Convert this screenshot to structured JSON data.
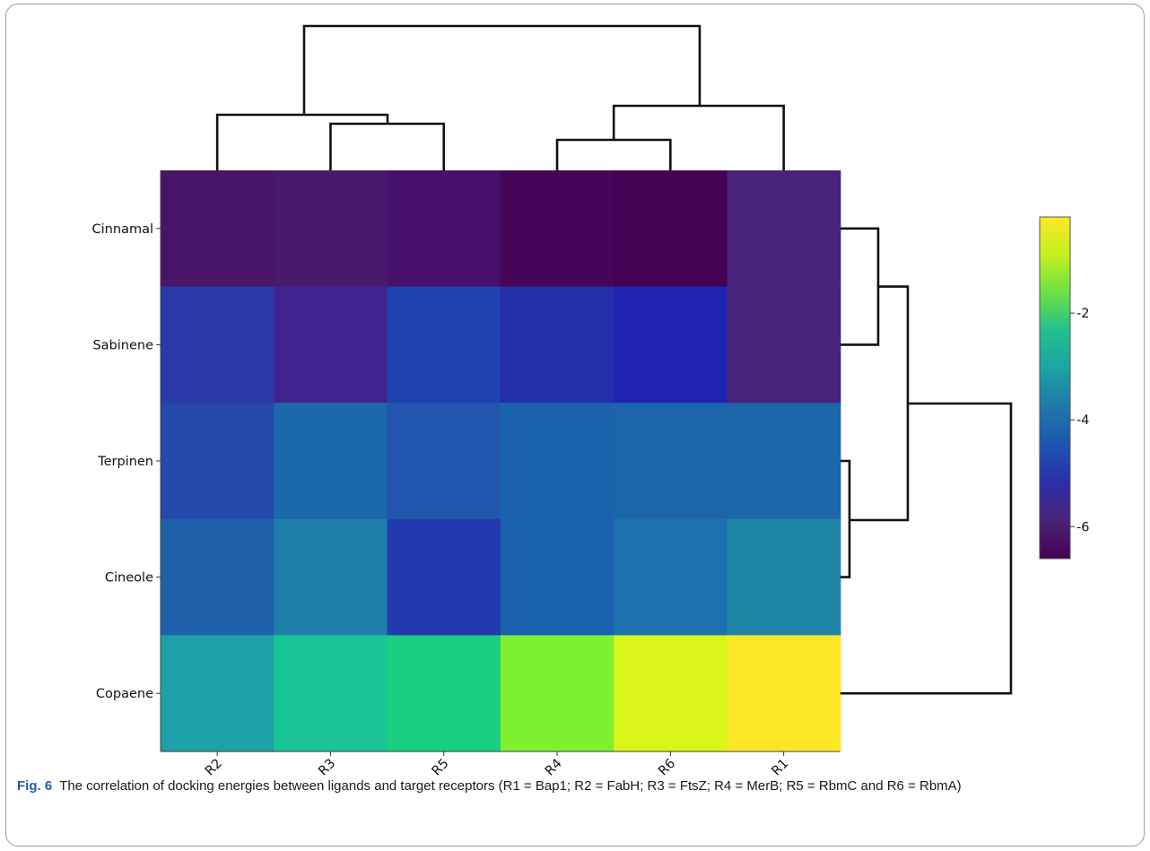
{
  "chart_data": {
    "type": "heatmap",
    "title": "",
    "xlabel": "",
    "ylabel": "",
    "columns": [
      "R2",
      "R3",
      "R5",
      "R4",
      "R6",
      "R1"
    ],
    "rows": [
      "Cinnamal",
      "Sabinene",
      "Terpinen",
      "Cineole",
      "Copaene"
    ],
    "values": [
      [
        -6.2,
        -6.1,
        -6.3,
        -6.4,
        -6.6,
        -5.9
      ],
      [
        -5.1,
        -5.7,
        -4.8,
        -5.2,
        -5.3,
        -5.9
      ],
      [
        -4.9,
        -4.2,
        -4.6,
        -4.3,
        -4.3,
        -4.2
      ],
      [
        -4.4,
        -3.9,
        -5.1,
        -4.4,
        -4.1,
        -3.8
      ],
      [
        -3.3,
        -2.2,
        -2.1,
        -1.2,
        -0.6,
        -0.3
      ]
    ],
    "colors": [
      [
        "#481568",
        "#481a6c",
        "#47106a",
        "#450559",
        "#440154",
        "#48237b"
      ],
      [
        "#2a3aa8",
        "#3e238e",
        "#1e42ae",
        "#232eaa",
        "#2023b2",
        "#48237b"
      ],
      [
        "#2548ad",
        "#1b68ac",
        "#2155ae",
        "#1b62ae",
        "#1b65aa",
        "#1c66aa"
      ],
      [
        "#1d62aa",
        "#1e7faa",
        "#2339b0",
        "#1b61ae",
        "#1c72ad",
        "#1f85a6"
      ],
      [
        "#1ea0a8",
        "#19c595",
        "#18d080",
        "#7ef02f",
        "#d9f519",
        "#fde725"
      ]
    ],
    "colorbar": {
      "ticks": [
        "-2",
        "-4",
        "-6"
      ],
      "tick_values": [
        -2,
        -4,
        -6
      ],
      "range": [
        -6.6,
        -0.2
      ],
      "stops": [
        "#440154",
        "#482475",
        "#2c2dac",
        "#1d55b0",
        "#1e78aa",
        "#1ca3a2",
        "#22c08e",
        "#6ae144",
        "#c4f01f",
        "#fde725"
      ]
    },
    "col_dendrogram": [
      "((R2,(R3,R5)),((R4,R6),R1))"
    ],
    "row_dendrogram": [
      "(((Cinnamal,Sabinene),(Terpinen,Cineole)),Copaene)"
    ]
  },
  "caption": {
    "label": "Fig. 6",
    "text": "The correlation of docking energies between ligands and target receptors (R1 = Bap1; R2 = FabH; R3 = FtsZ; R4 = MerB; R5 = RbmC and R6 = RbmA)"
  }
}
